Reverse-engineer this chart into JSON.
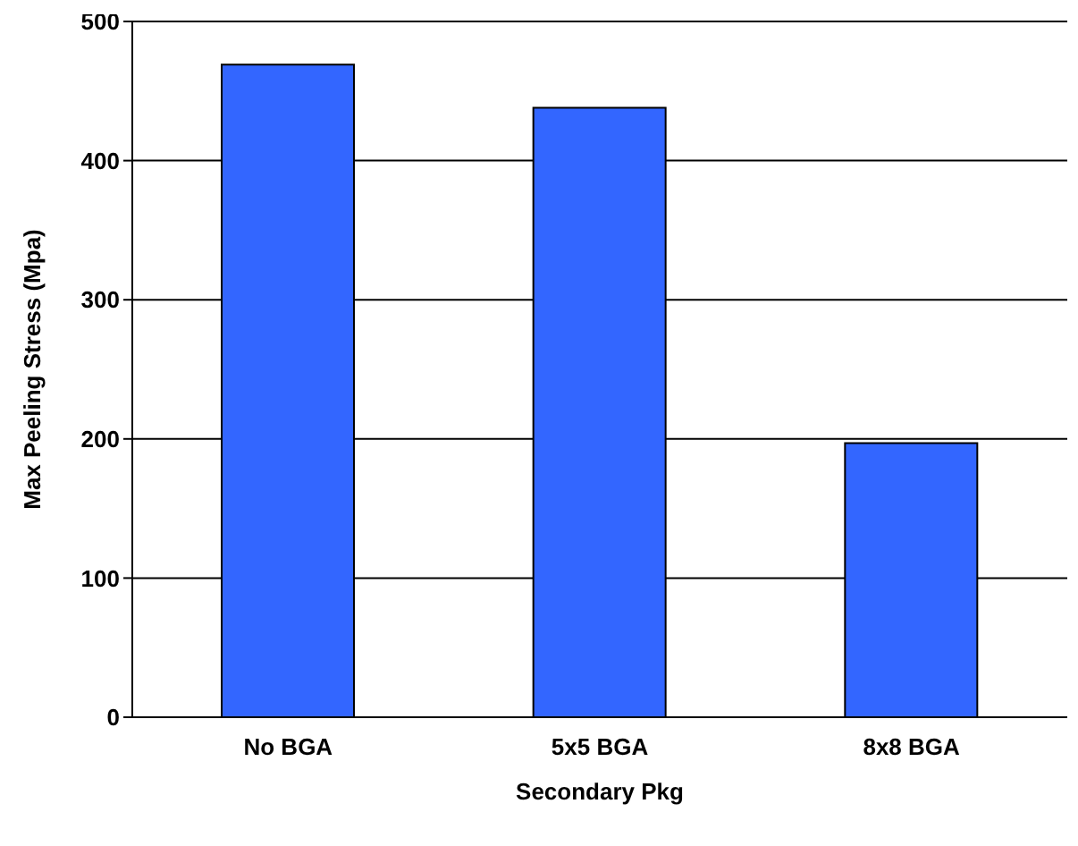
{
  "chart_data": {
    "type": "bar",
    "xlabel": "Secondary Pkg",
    "ylabel": "Max Peeling Stress (Mpa)",
    "categories": [
      "No BGA",
      "5x5 BGA",
      "8x8 BGA"
    ],
    "values": [
      469,
      438,
      197
    ],
    "color": "#3366ff",
    "ylim": [
      0,
      500
    ],
    "yticks": [
      0,
      100,
      200,
      300,
      400,
      500
    ],
    "grid": "y",
    "legend": false
  }
}
